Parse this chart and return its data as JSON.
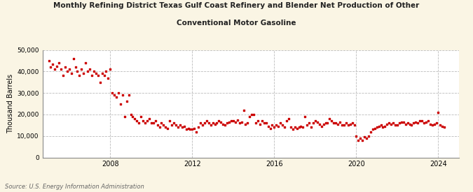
{
  "title_line1": "Monthly Refining District Texas Gulf Coast Refinery and Blender Net Production of Other",
  "title_line2": "Conventional Motor Gasoline",
  "ylabel": "Thousand Barrels",
  "source": "Source: U.S. Energy Information Administration",
  "bg_color": "#FAF5E4",
  "plot_bg_color": "#FFFFFF",
  "dot_color": "#CC0000",
  "dot_size": 3,
  "ylim": [
    0,
    50000
  ],
  "yticks": [
    0,
    10000,
    20000,
    30000,
    40000,
    50000
  ],
  "ytick_labels": [
    "0",
    "10,000",
    "20,000",
    "30,000",
    "40,000",
    "50,000"
  ],
  "xticks": [
    2008,
    2012,
    2016,
    2020,
    2024
  ],
  "xlim_start": 2004.7,
  "xlim_end": 2025.0,
  "data": [
    [
      2005.0,
      45000
    ],
    [
      2005.1,
      42000
    ],
    [
      2005.2,
      43500
    ],
    [
      2005.3,
      41000
    ],
    [
      2005.4,
      42500
    ],
    [
      2005.5,
      44000
    ],
    [
      2005.6,
      41000
    ],
    [
      2005.7,
      38000
    ],
    [
      2005.8,
      42000
    ],
    [
      2005.9,
      40000
    ],
    [
      2006.0,
      41000
    ],
    [
      2006.1,
      39000
    ],
    [
      2006.2,
      46000
    ],
    [
      2006.3,
      42000
    ],
    [
      2006.4,
      40000
    ],
    [
      2006.5,
      38000
    ],
    [
      2006.6,
      41000
    ],
    [
      2006.7,
      39000
    ],
    [
      2006.8,
      44000
    ],
    [
      2006.9,
      40000
    ],
    [
      2007.0,
      41000
    ],
    [
      2007.1,
      38000
    ],
    [
      2007.2,
      40000
    ],
    [
      2007.3,
      39000
    ],
    [
      2007.4,
      38000
    ],
    [
      2007.5,
      35000
    ],
    [
      2007.6,
      39000
    ],
    [
      2007.7,
      38000
    ],
    [
      2007.8,
      40000
    ],
    [
      2007.9,
      37000
    ],
    [
      2008.0,
      41000
    ],
    [
      2008.1,
      30000
    ],
    [
      2008.2,
      29000
    ],
    [
      2008.3,
      28000
    ],
    [
      2008.4,
      30000
    ],
    [
      2008.5,
      25000
    ],
    [
      2008.6,
      29000
    ],
    [
      2008.7,
      19000
    ],
    [
      2008.8,
      26000
    ],
    [
      2008.9,
      29000
    ],
    [
      2009.0,
      20000
    ],
    [
      2009.1,
      19000
    ],
    [
      2009.2,
      18000
    ],
    [
      2009.3,
      17000
    ],
    [
      2009.4,
      16000
    ],
    [
      2009.5,
      19000
    ],
    [
      2009.6,
      17000
    ],
    [
      2009.7,
      16000
    ],
    [
      2009.8,
      17000
    ],
    [
      2009.9,
      18000
    ],
    [
      2010.0,
      16000
    ],
    [
      2010.1,
      16000
    ],
    [
      2010.2,
      17000
    ],
    [
      2010.3,
      15000
    ],
    [
      2010.4,
      14000
    ],
    [
      2010.5,
      16000
    ],
    [
      2010.6,
      15000
    ],
    [
      2010.7,
      14000
    ],
    [
      2010.8,
      13500
    ],
    [
      2010.9,
      17000
    ],
    [
      2011.0,
      15000
    ],
    [
      2011.1,
      16000
    ],
    [
      2011.2,
      15000
    ],
    [
      2011.3,
      14000
    ],
    [
      2011.4,
      15000
    ],
    [
      2011.5,
      14000
    ],
    [
      2011.6,
      14500
    ],
    [
      2011.7,
      13000
    ],
    [
      2011.8,
      13500
    ],
    [
      2011.9,
      13000
    ],
    [
      2012.0,
      13000
    ],
    [
      2012.1,
      13500
    ],
    [
      2012.2,
      12000
    ],
    [
      2012.3,
      14000
    ],
    [
      2012.4,
      16000
    ],
    [
      2012.5,
      15000
    ],
    [
      2012.6,
      16000
    ],
    [
      2012.7,
      17000
    ],
    [
      2012.8,
      16000
    ],
    [
      2012.9,
      15000
    ],
    [
      2013.0,
      16000
    ],
    [
      2013.1,
      15500
    ],
    [
      2013.2,
      16000
    ],
    [
      2013.3,
      17000
    ],
    [
      2013.4,
      16500
    ],
    [
      2013.5,
      15500
    ],
    [
      2013.6,
      15000
    ],
    [
      2013.7,
      16000
    ],
    [
      2013.8,
      16500
    ],
    [
      2013.9,
      17000
    ],
    [
      2014.0,
      17000
    ],
    [
      2014.1,
      16500
    ],
    [
      2014.2,
      17500
    ],
    [
      2014.3,
      16000
    ],
    [
      2014.4,
      16500
    ],
    [
      2014.5,
      22000
    ],
    [
      2014.6,
      15500
    ],
    [
      2014.7,
      16000
    ],
    [
      2014.8,
      19000
    ],
    [
      2014.9,
      20000
    ],
    [
      2015.0,
      20000
    ],
    [
      2015.1,
      16000
    ],
    [
      2015.2,
      17000
    ],
    [
      2015.3,
      15500
    ],
    [
      2015.4,
      17000
    ],
    [
      2015.5,
      16000
    ],
    [
      2015.6,
      16000
    ],
    [
      2015.7,
      14500
    ],
    [
      2015.8,
      13500
    ],
    [
      2015.9,
      15000
    ],
    [
      2016.0,
      14000
    ],
    [
      2016.1,
      15000
    ],
    [
      2016.2,
      14500
    ],
    [
      2016.3,
      16000
    ],
    [
      2016.4,
      15000
    ],
    [
      2016.5,
      14000
    ],
    [
      2016.6,
      17000
    ],
    [
      2016.7,
      18000
    ],
    [
      2016.8,
      14000
    ],
    [
      2016.9,
      13000
    ],
    [
      2017.0,
      14000
    ],
    [
      2017.1,
      13500
    ],
    [
      2017.2,
      14000
    ],
    [
      2017.3,
      14500
    ],
    [
      2017.4,
      14000
    ],
    [
      2017.5,
      19000
    ],
    [
      2017.6,
      15000
    ],
    [
      2017.7,
      16000
    ],
    [
      2017.8,
      14000
    ],
    [
      2017.9,
      16000
    ],
    [
      2018.0,
      17000
    ],
    [
      2018.1,
      16500
    ],
    [
      2018.2,
      15500
    ],
    [
      2018.3,
      14500
    ],
    [
      2018.4,
      15500
    ],
    [
      2018.5,
      16000
    ],
    [
      2018.6,
      16000
    ],
    [
      2018.7,
      18000
    ],
    [
      2018.8,
      17000
    ],
    [
      2018.9,
      16000
    ],
    [
      2019.0,
      16000
    ],
    [
      2019.1,
      15500
    ],
    [
      2019.2,
      16500
    ],
    [
      2019.3,
      15000
    ],
    [
      2019.4,
      15000
    ],
    [
      2019.5,
      16000
    ],
    [
      2019.6,
      15000
    ],
    [
      2019.7,
      15500
    ],
    [
      2019.8,
      16000
    ],
    [
      2019.9,
      15000
    ],
    [
      2020.0,
      10000
    ],
    [
      2020.1,
      8000
    ],
    [
      2020.2,
      9000
    ],
    [
      2020.3,
      8000
    ],
    [
      2020.4,
      9500
    ],
    [
      2020.5,
      9000
    ],
    [
      2020.6,
      10000
    ],
    [
      2020.7,
      12000
    ],
    [
      2020.8,
      13000
    ],
    [
      2020.9,
      13500
    ],
    [
      2021.0,
      14000
    ],
    [
      2021.1,
      14500
    ],
    [
      2021.2,
      15000
    ],
    [
      2021.3,
      14000
    ],
    [
      2021.4,
      14500
    ],
    [
      2021.5,
      15500
    ],
    [
      2021.6,
      16000
    ],
    [
      2021.7,
      15500
    ],
    [
      2021.8,
      16000
    ],
    [
      2021.9,
      15000
    ],
    [
      2022.0,
      15000
    ],
    [
      2022.1,
      16000
    ],
    [
      2022.2,
      16500
    ],
    [
      2022.3,
      16500
    ],
    [
      2022.4,
      15500
    ],
    [
      2022.5,
      16000
    ],
    [
      2022.6,
      15500
    ],
    [
      2022.7,
      15000
    ],
    [
      2022.8,
      16000
    ],
    [
      2022.9,
      16500
    ],
    [
      2023.0,
      16000
    ],
    [
      2023.1,
      17000
    ],
    [
      2023.2,
      17000
    ],
    [
      2023.3,
      16000
    ],
    [
      2023.4,
      16500
    ],
    [
      2023.5,
      17000
    ],
    [
      2023.6,
      15500
    ],
    [
      2023.7,
      15000
    ],
    [
      2023.8,
      15500
    ],
    [
      2023.9,
      16000
    ],
    [
      2024.0,
      21000
    ],
    [
      2024.1,
      15000
    ],
    [
      2024.2,
      14500
    ],
    [
      2024.3,
      14000
    ]
  ]
}
